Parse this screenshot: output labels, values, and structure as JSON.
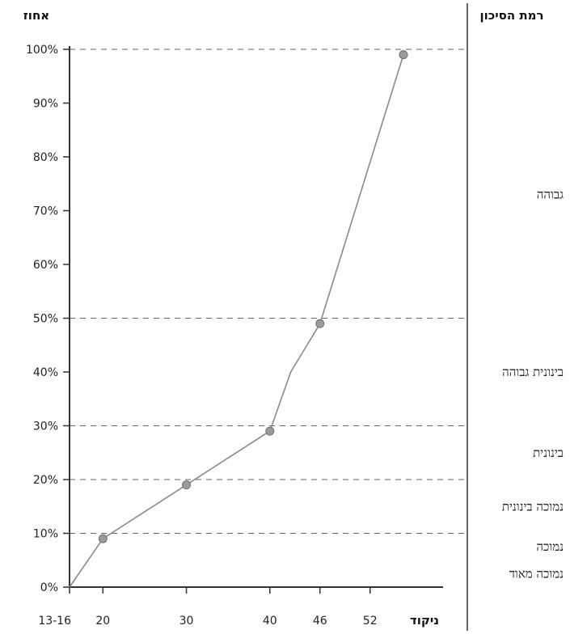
{
  "chart_data": {
    "type": "line",
    "ylabel": "אחוז",
    "xlabel": "ניקוד",
    "risk_header": "רמת הסיכון",
    "y_ticks": [
      "0%",
      "10%",
      "20%",
      "30%",
      "40%",
      "50%",
      "60%",
      "70%",
      "80%",
      "90%",
      "100%"
    ],
    "x_ticks": [
      {
        "label": "13-16",
        "value": 16
      },
      {
        "label": "20",
        "value": 20
      },
      {
        "label": "30",
        "value": 30
      },
      {
        "label": "40",
        "value": 40
      },
      {
        "label": "46",
        "value": 46
      },
      {
        "label": "52",
        "value": 52
      }
    ],
    "ylim": [
      0,
      100
    ],
    "series": [
      {
        "points": [
          {
            "x": 16,
            "y": 0,
            "marker": false
          },
          {
            "x": 20,
            "y": 9,
            "marker": true
          },
          {
            "x": 30,
            "y": 19,
            "marker": true
          },
          {
            "x": 40,
            "y": 29,
            "marker": true
          },
          {
            "x": 42.5,
            "y": 40,
            "marker": false
          },
          {
            "x": 46,
            "y": 49,
            "marker": true
          },
          {
            "x": 56,
            "y": 99,
            "marker": true
          }
        ]
      }
    ],
    "threshold_lines": [
      10,
      20,
      30,
      50,
      100
    ],
    "risk_levels": [
      {
        "label": "גבוהה",
        "y": 73
      },
      {
        "label": "בינונית גבוהה",
        "y": 40
      },
      {
        "label": "בינונית",
        "y": 25
      },
      {
        "label": "נמוכה בינונית",
        "y": 15
      },
      {
        "label": "נמוכה",
        "y": 7.5
      },
      {
        "label": "נמוכה מאוד",
        "y": 2.5
      }
    ],
    "colors": {
      "line": "#8a8a8a",
      "marker": "#9a9a9a",
      "marker_stroke": "#6d6d6d",
      "axis": "#333333",
      "dash": "#666666"
    }
  }
}
